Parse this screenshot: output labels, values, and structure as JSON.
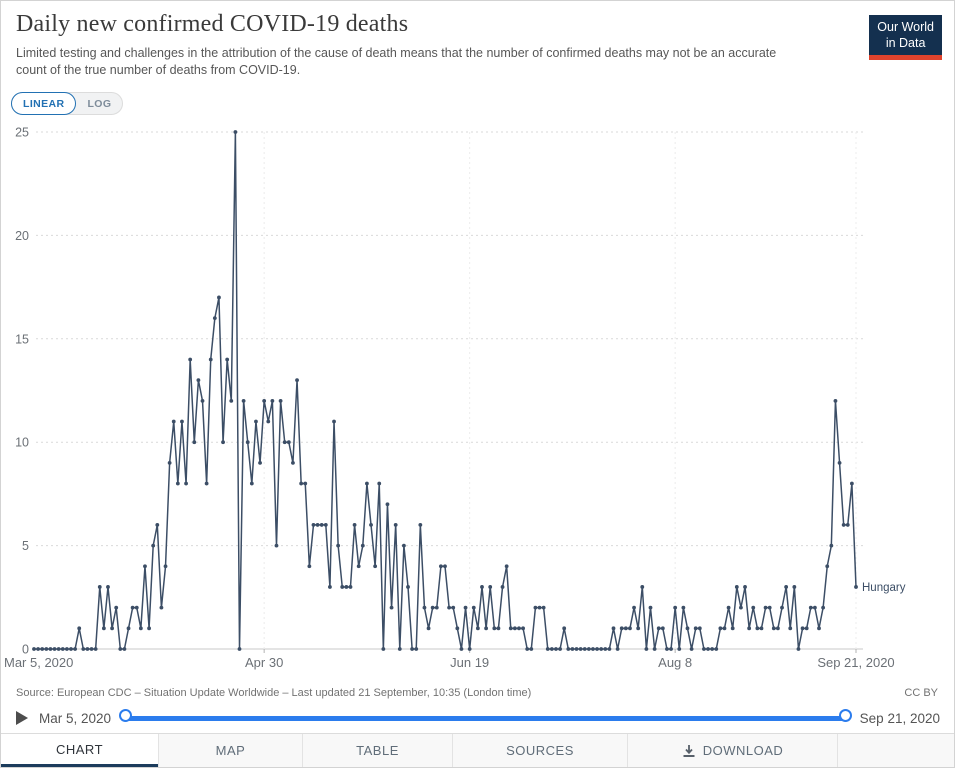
{
  "header": {
    "title": "Daily new confirmed COVID-19 deaths",
    "subtitle": "Limited testing and challenges in the attribution of the cause of death means that the number of confirmed deaths may not be an accurate count of the true number of deaths from COVID-19.",
    "logo_line1": "Our World",
    "logo_line2": "in Data"
  },
  "controls": {
    "linear_label": "LINEAR",
    "log_label": "LOG",
    "active_scale": "LINEAR"
  },
  "chart_data": {
    "type": "line",
    "title": "Daily new confirmed COVID-19 deaths",
    "x_start": "Mar 5, 2020",
    "x_end": "Sep 21, 2020",
    "ylim": [
      0,
      25
    ],
    "y_ticks": [
      0,
      5,
      10,
      15,
      20,
      25
    ],
    "x_ticks": [
      {
        "label": "Mar 5, 2020",
        "day": 0
      },
      {
        "label": "Apr 30",
        "day": 56
      },
      {
        "label": "Jun 19",
        "day": 106
      },
      {
        "label": "Aug 8",
        "day": 156
      },
      {
        "label": "Sep 21, 2020",
        "day": 200
      }
    ],
    "grid": "horizontal-dashed, faint vertical at x ticks",
    "legend_position": "end-of-line label",
    "series": [
      {
        "name": "Hungary",
        "color": "#3C4E66",
        "values": [
          0,
          0,
          0,
          0,
          0,
          0,
          0,
          0,
          0,
          0,
          0,
          1,
          0,
          0,
          0,
          0,
          3,
          1,
          3,
          1,
          2,
          0,
          0,
          1,
          2,
          2,
          1,
          4,
          1,
          5,
          6,
          2,
          4,
          9,
          11,
          8,
          11,
          8,
          14,
          10,
          13,
          12,
          8,
          14,
          16,
          17,
          10,
          14,
          12,
          25,
          0,
          12,
          10,
          8,
          11,
          9,
          12,
          11,
          12,
          5,
          12,
          10,
          10,
          9,
          13,
          8,
          8,
          4,
          6,
          6,
          6,
          6,
          3,
          11,
          5,
          3,
          3,
          3,
          6,
          4,
          5,
          8,
          6,
          4,
          8,
          0,
          7,
          2,
          6,
          0,
          5,
          3,
          0,
          0,
          6,
          2,
          1,
          2,
          2,
          4,
          4,
          2,
          2,
          1,
          0,
          2,
          0,
          2,
          1,
          3,
          1,
          3,
          1,
          1,
          3,
          4,
          1,
          1,
          1,
          1,
          0,
          0,
          2,
          2,
          2,
          0,
          0,
          0,
          0,
          1,
          0,
          0,
          0,
          0,
          0,
          0,
          0,
          0,
          0,
          0,
          0,
          1,
          0,
          1,
          1,
          1,
          2,
          1,
          3,
          0,
          2,
          0,
          1,
          1,
          0,
          0,
          2,
          0,
          2,
          1,
          0,
          1,
          1,
          0,
          0,
          0,
          0,
          1,
          1,
          2,
          1,
          3,
          2,
          3,
          1,
          2,
          1,
          1,
          2,
          2,
          1,
          1,
          2,
          3,
          1,
          3,
          0,
          1,
          1,
          2,
          2,
          1,
          2,
          4,
          5,
          12,
          9,
          6,
          6,
          8,
          3
        ]
      }
    ],
    "end_label": "Hungary"
  },
  "footer": {
    "source": "Source: European CDC – Situation Update Worldwide – Last updated 21 September, 10:35 (London time)",
    "license": "CC BY",
    "timeline": {
      "start": "Mar 5, 2020",
      "end": "Sep 21, 2020"
    },
    "tabs": [
      {
        "label": "CHART",
        "active": true
      },
      {
        "label": "MAP",
        "active": false
      },
      {
        "label": "TABLE",
        "active": false
      },
      {
        "label": "SOURCES",
        "active": false
      },
      {
        "label": "DOWNLOAD",
        "active": false
      }
    ]
  },
  "colors": {
    "line": "#3C4E66",
    "toggle_blue": "#2271B3",
    "slider_blue": "#2B7CED",
    "logo_navy": "#14304F",
    "logo_red": "#E0432D",
    "tab_underline": "#1C3C5C",
    "grid_gray": "#d9d9d9",
    "axis_text": "#6b7076"
  }
}
